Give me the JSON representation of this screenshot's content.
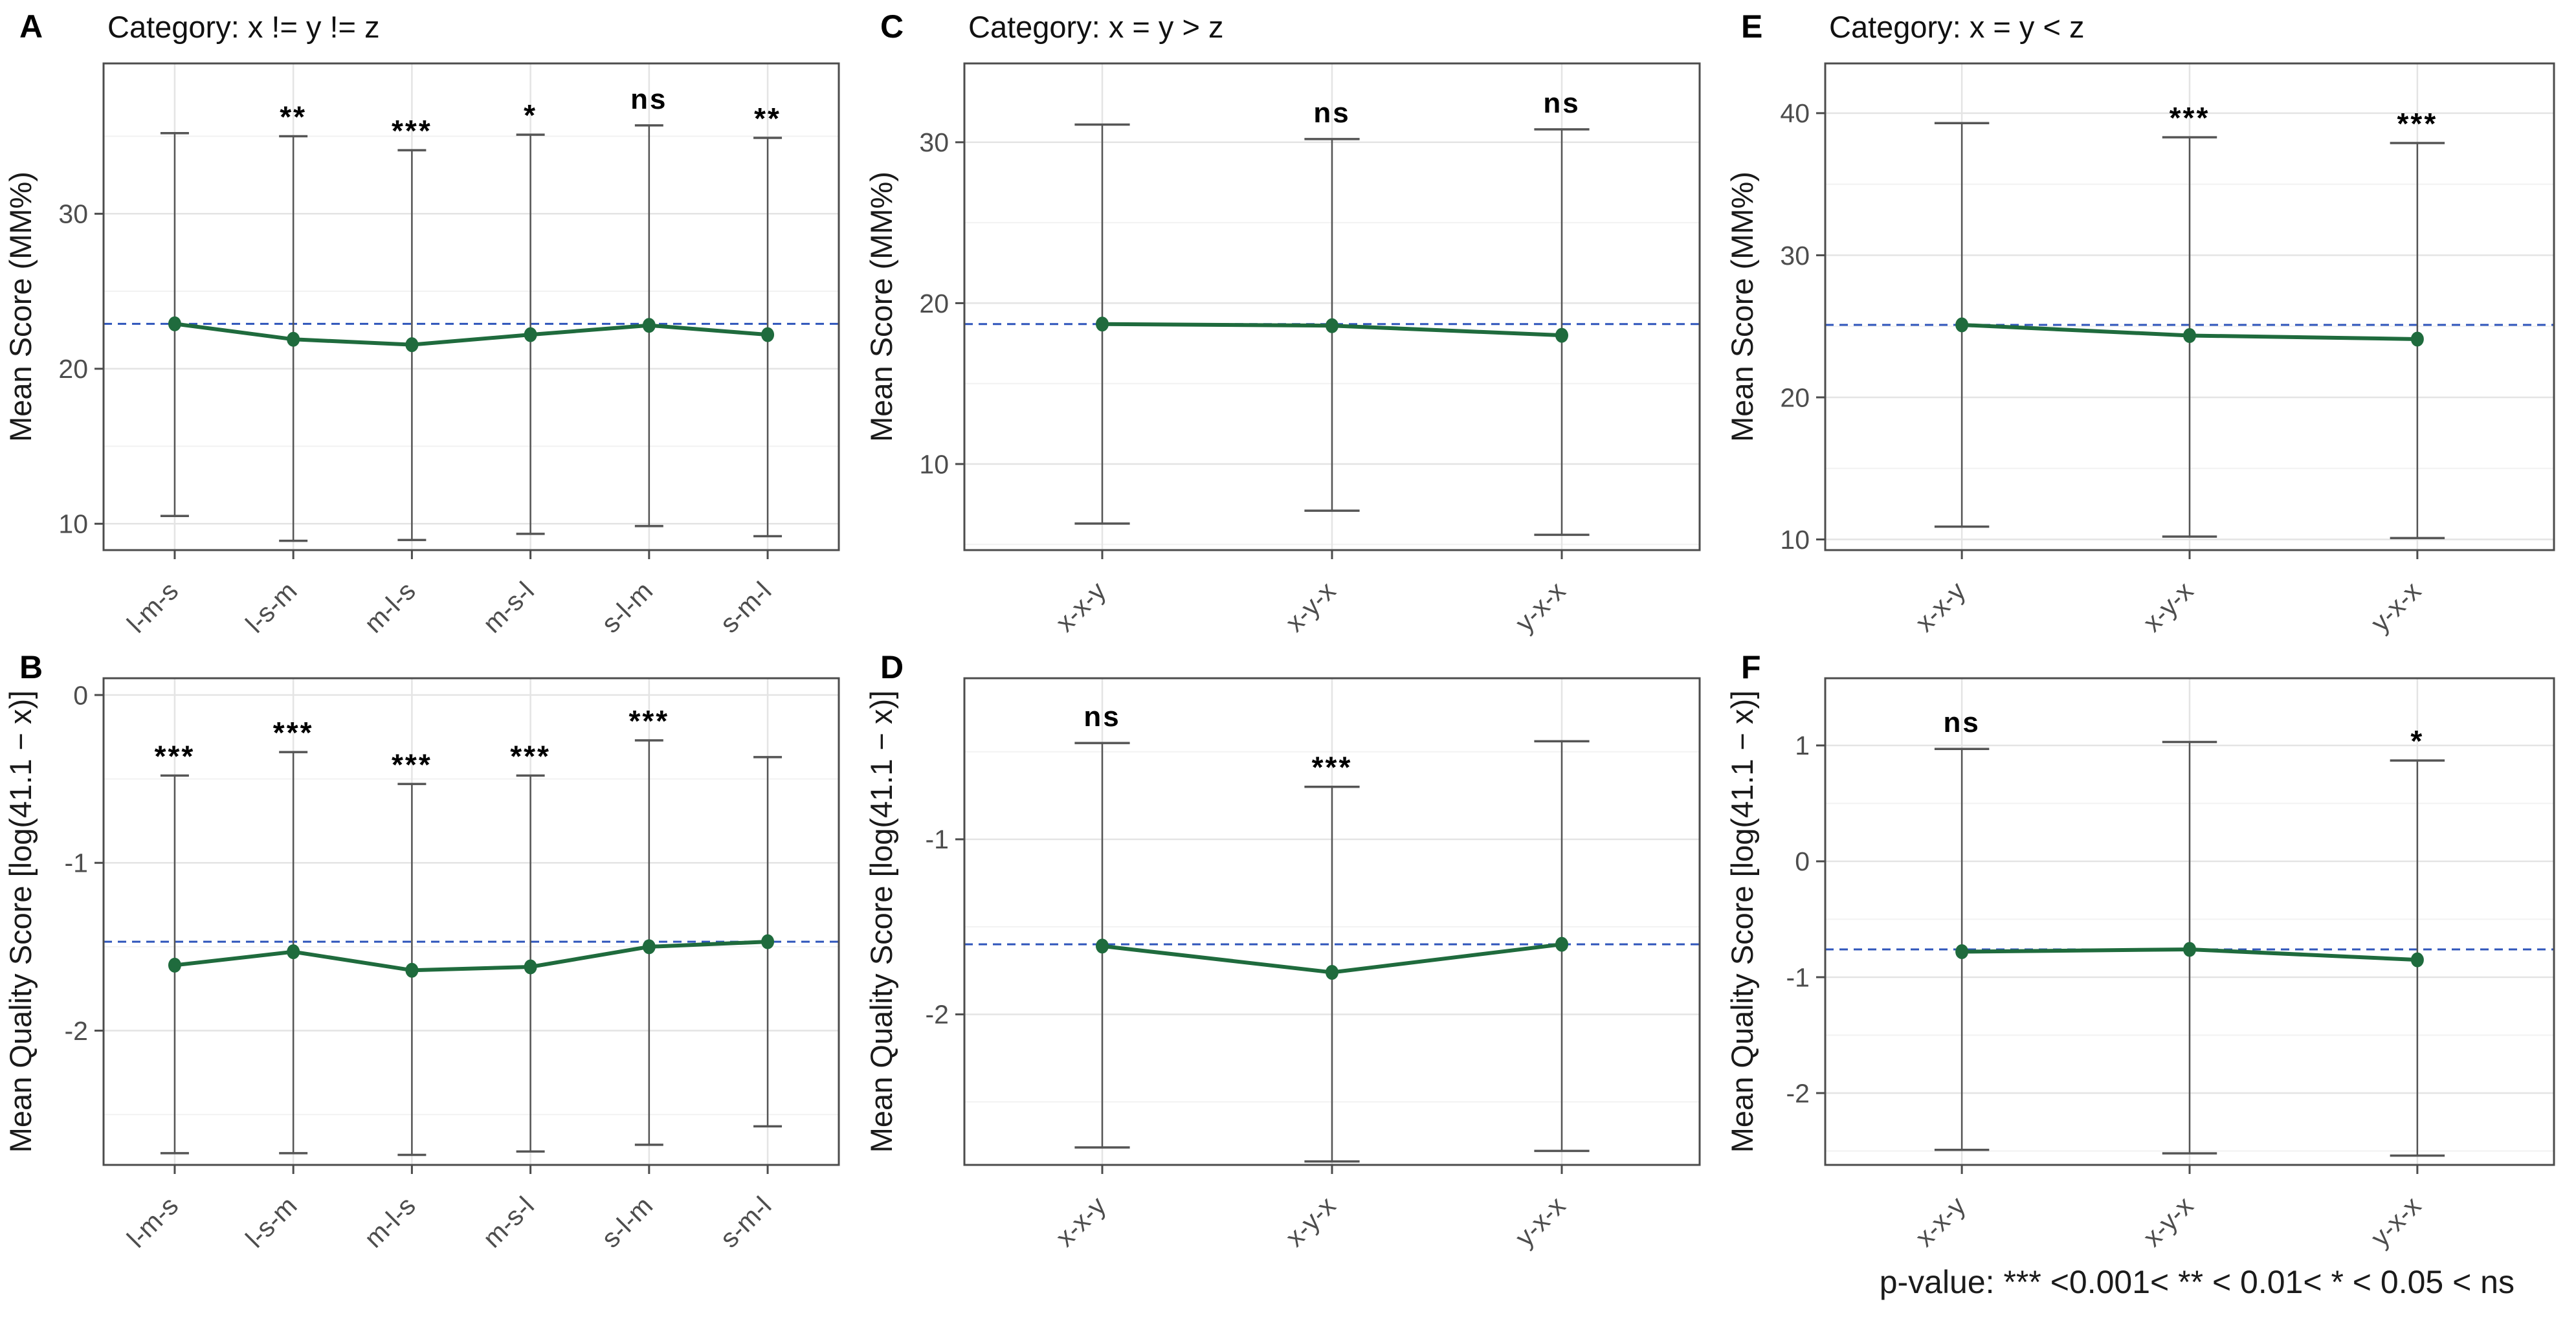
{
  "caption": "p-value: *** <0.001< ** < 0.01< * < 0.05 < ns",
  "colors": {
    "series": "#1f6b3d",
    "ref_line": "#2f55bb",
    "error_bar": "#555555",
    "grid_major": "#e4e4e4",
    "grid_minor": "#f2f2f2",
    "panel_border": "#4c4c4c",
    "axis": "#4c4c4c",
    "tick_text": "#4d4d4d",
    "title_text": "#1a1a1a",
    "sig_text": "#000000"
  },
  "panels": [
    {
      "letter": "A",
      "title": "Category: x != y != z"
    },
    {
      "letter": "B",
      "title": ""
    },
    {
      "letter": "C",
      "title": "Category: x = y > z"
    },
    {
      "letter": "D",
      "title": ""
    },
    {
      "letter": "E",
      "title": "Category: x = y < z"
    },
    {
      "letter": "F",
      "title": ""
    }
  ],
  "chart_data": [
    {
      "type": "line",
      "title": "Category: x != y != z",
      "ylabel": "Mean Score (MM%)",
      "categories": [
        "l-m-s",
        "l-s-m",
        "m-l-s",
        "m-s-l",
        "s-l-m",
        "s-m-l"
      ],
      "series": [
        {
          "name": "mean",
          "values": [
            22.9,
            21.9,
            21.55,
            22.2,
            22.8,
            22.2
          ]
        }
      ],
      "error_high": [
        35.2,
        35.0,
        34.1,
        35.1,
        35.7,
        34.9
      ],
      "error_low": [
        10.5,
        8.9,
        8.95,
        9.35,
        9.85,
        9.2
      ],
      "sig_labels": [
        "",
        "**",
        "***",
        "*",
        "ns",
        "**"
      ],
      "ref_line": 22.9,
      "yticks": [
        10,
        20,
        30
      ],
      "yticks_minor": [
        15,
        25,
        35
      ],
      "ylim": [
        8.3,
        39.7
      ],
      "grid": true,
      "legend": false
    },
    {
      "type": "line",
      "title": "",
      "ylabel": "Mean Quality Score [log(41.1 − x)]",
      "categories": [
        "l-m-s",
        "l-s-m",
        "m-l-s",
        "m-s-l",
        "s-l-m",
        "s-m-l"
      ],
      "series": [
        {
          "name": "mean",
          "values": [
            -1.61,
            -1.53,
            -1.64,
            -1.62,
            -1.5,
            -1.47
          ]
        }
      ],
      "error_high": [
        -0.48,
        -0.34,
        -0.53,
        -0.48,
        -0.27,
        -0.37
      ],
      "error_low": [
        -2.73,
        -2.73,
        -2.74,
        -2.72,
        -2.68,
        -2.57
      ],
      "sig_labels": [
        "***",
        "***",
        "***",
        "***",
        "***",
        ""
      ],
      "ref_line": -1.47,
      "yticks": [
        0,
        -1,
        -2
      ],
      "yticks_minor": [
        -0.5,
        -1.5,
        -2.5
      ],
      "ylim": [
        -2.8,
        0.1
      ],
      "grid": true,
      "legend": false
    },
    {
      "type": "line",
      "title": "Category: x = y > z",
      "ylabel": "Mean Score (MM%)",
      "categories": [
        "x-x-y",
        "x-y-x",
        "y-x-x"
      ],
      "series": [
        {
          "name": "mean",
          "values": [
            18.7,
            18.6,
            18.0
          ]
        }
      ],
      "error_high": [
        31.1,
        30.2,
        30.8
      ],
      "error_low": [
        6.3,
        7.1,
        5.6
      ],
      "sig_labels": [
        "",
        "ns",
        "ns"
      ],
      "ref_line": 18.7,
      "yticks": [
        10,
        20,
        30
      ],
      "yticks_minor": [
        5,
        15,
        25
      ],
      "ylim": [
        4.65,
        34.9
      ],
      "grid": true,
      "legend": false
    },
    {
      "type": "line",
      "title": "",
      "ylabel": "Mean Quality Score [log(41.1 − x)]",
      "categories": [
        "x-x-y",
        "x-y-x",
        "y-x-x"
      ],
      "series": [
        {
          "name": "mean",
          "values": [
            -1.61,
            -1.76,
            -1.6
          ]
        }
      ],
      "error_high": [
        -0.45,
        -0.7,
        -0.44
      ],
      "error_low": [
        -2.76,
        -2.84,
        -2.78
      ],
      "sig_labels": [
        "ns",
        "***",
        ""
      ],
      "ref_line": -1.6,
      "yticks": [
        -1,
        -2
      ],
      "yticks_minor": [
        -0.5,
        -1.5,
        -2.5
      ],
      "ylim": [
        -2.86,
        -0.08
      ],
      "grid": true,
      "legend": false
    },
    {
      "type": "line",
      "title": "Category: x = y < z",
      "ylabel": "Mean Score (MM%)",
      "categories": [
        "x-x-y",
        "x-y-x",
        "y-x-x"
      ],
      "series": [
        {
          "name": "mean",
          "values": [
            25.1,
            24.35,
            24.1
          ]
        }
      ],
      "error_high": [
        39.3,
        38.3,
        37.9
      ],
      "error_low": [
        10.9,
        10.2,
        10.1
      ],
      "sig_labels": [
        "",
        "***",
        "***"
      ],
      "ref_line": 25.1,
      "yticks": [
        10,
        20,
        30,
        40
      ],
      "yticks_minor": [
        15,
        25,
        35
      ],
      "ylim": [
        9.25,
        43.5
      ],
      "grid": true,
      "legend": false
    },
    {
      "type": "line",
      "title": "",
      "ylabel": "Mean Quality Score [log(41.1 − x)]",
      "categories": [
        "x-x-y",
        "x-y-x",
        "y-x-x"
      ],
      "series": [
        {
          "name": "mean",
          "values": [
            -0.78,
            -0.76,
            -0.85
          ]
        }
      ],
      "error_high": [
        0.97,
        1.03,
        0.87
      ],
      "error_low": [
        -2.49,
        -2.52,
        -2.54
      ],
      "sig_labels": [
        "ns",
        "",
        "*"
      ],
      "ref_line": -0.76,
      "yticks": [
        1,
        0,
        -1,
        -2
      ],
      "yticks_minor": [
        0.5,
        -0.5,
        -1.5,
        -2.5
      ],
      "ylim": [
        -2.62,
        1.58
      ],
      "grid": true,
      "legend": false
    }
  ]
}
